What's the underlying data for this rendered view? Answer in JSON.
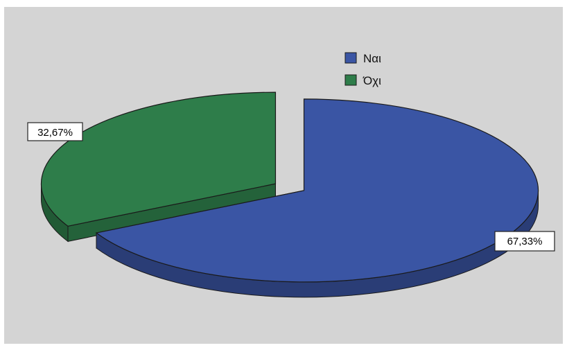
{
  "chart_data": {
    "type": "pie",
    "three_d": true,
    "exploded": true,
    "legend_position": "top-right",
    "slices": [
      {
        "name": "Ναι",
        "value": 67.33,
        "label": "67,33%",
        "color": "#3a55a4"
      },
      {
        "name": "Όχι",
        "value": 32.67,
        "label": "32,67%",
        "color": "#2e7d4a"
      }
    ]
  }
}
